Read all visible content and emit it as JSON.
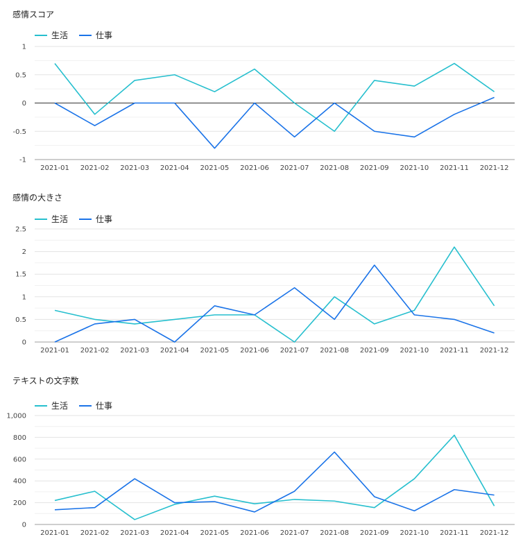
{
  "colors": {
    "life": "#26bfce",
    "work": "#1a73e8",
    "grid": "#e3e3e3",
    "zero": "#333333"
  },
  "legend": {
    "life": "生活",
    "work": "仕事"
  },
  "chart_data": [
    {
      "type": "line",
      "title": "感情スコア",
      "x": [
        "2021-01",
        "2021-02",
        "2021-03",
        "2021-04",
        "2021-05",
        "2021-06",
        "2021-07",
        "2021-08",
        "2021-09",
        "2021-10",
        "2021-11",
        "2021-12"
      ],
      "ylim": [
        -1,
        1
      ],
      "yticks": [
        -1,
        -0.5,
        0,
        0.5,
        1
      ],
      "ytick_labels": [
        "-1",
        "-0.5",
        "0",
        "0.5",
        "1"
      ],
      "zero_line": true,
      "series": [
        {
          "name": "生活",
          "values": [
            0.7,
            -0.2,
            0.4,
            0.5,
            0.2,
            0.6,
            0.0,
            -0.5,
            0.4,
            0.3,
            0.7,
            0.2
          ]
        },
        {
          "name": "仕事",
          "values": [
            0.0,
            -0.4,
            0.0,
            0.0,
            -0.8,
            0.0,
            -0.6,
            0.0,
            -0.5,
            -0.6,
            -0.2,
            0.1
          ]
        }
      ]
    },
    {
      "type": "line",
      "title": "感情の大きさ",
      "x": [
        "2021-01",
        "2021-02",
        "2021-03",
        "2021-04",
        "2021-05",
        "2021-06",
        "2021-07",
        "2021-08",
        "2021-09",
        "2021-10",
        "2021-11",
        "2021-12"
      ],
      "ylim": [
        0,
        2.5
      ],
      "yticks": [
        0,
        0.5,
        1,
        1.5,
        2,
        2.5
      ],
      "ytick_labels": [
        "0",
        "0.5",
        "1",
        "1.5",
        "2",
        "2.5"
      ],
      "zero_line": false,
      "series": [
        {
          "name": "生活",
          "values": [
            0.7,
            0.5,
            0.4,
            0.5,
            0.6,
            0.6,
            0.0,
            1.0,
            0.4,
            0.7,
            2.1,
            0.8
          ]
        },
        {
          "name": "仕事",
          "values": [
            0.0,
            0.4,
            0.5,
            0.0,
            0.8,
            0.6,
            1.2,
            0.5,
            1.7,
            0.6,
            0.5,
            0.2
          ]
        }
      ]
    },
    {
      "type": "line",
      "title": "テキストの文字数",
      "x": [
        "2021-01",
        "2021-02",
        "2021-03",
        "2021-04",
        "2021-05",
        "2021-06",
        "2021-07",
        "2021-08",
        "2021-09",
        "2021-10",
        "2021-11",
        "2021-12"
      ],
      "ylim": [
        0,
        1000
      ],
      "yticks": [
        0,
        200,
        400,
        600,
        800,
        1000
      ],
      "ytick_labels": [
        "0",
        "200",
        "400",
        "600",
        "800",
        "1,000"
      ],
      "zero_line": false,
      "series": [
        {
          "name": "生活",
          "values": [
            220,
            305,
            45,
            185,
            260,
            190,
            230,
            215,
            155,
            420,
            820,
            170
          ]
        },
        {
          "name": "仕事",
          "values": [
            135,
            155,
            420,
            200,
            210,
            115,
            305,
            665,
            255,
            125,
            320,
            270
          ]
        }
      ]
    }
  ]
}
